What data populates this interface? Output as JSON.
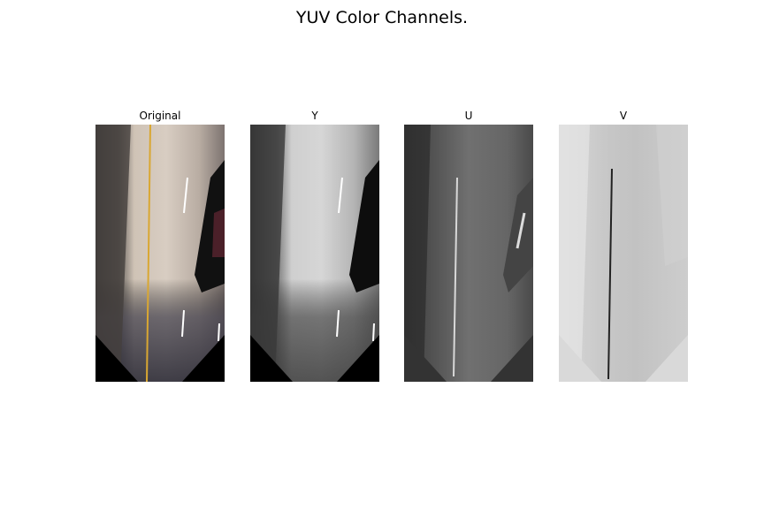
{
  "figure": {
    "title": "YUV Color Channels."
  },
  "panels": [
    {
      "title": "Original",
      "kind": "color"
    },
    {
      "title": "Y",
      "kind": "luma"
    },
    {
      "title": "U",
      "kind": "chroma-u"
    },
    {
      "title": "V",
      "kind": "chroma-v"
    }
  ]
}
